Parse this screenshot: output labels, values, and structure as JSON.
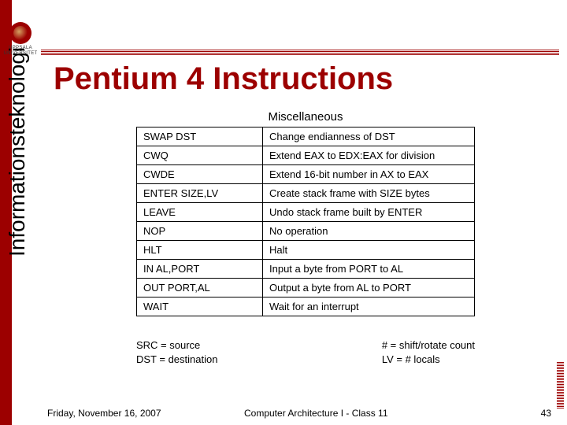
{
  "logo": {
    "line1": "UPPSALA",
    "line2": "UNIVERSITET"
  },
  "title": "Pentium 4 Instructions",
  "vertical_label": "Informationsteknologi",
  "table": {
    "heading": "Miscellaneous",
    "rows": [
      {
        "c1": "SWAP DST",
        "c2": "Change endianness of DST"
      },
      {
        "c1": "CWQ",
        "c2": "Extend EAX to EDX:EAX for division"
      },
      {
        "c1": "CWDE",
        "c2": "Extend 16-bit number in AX to EAX"
      },
      {
        "c1": "ENTER SIZE,LV",
        "c2": "Create stack frame with SIZE bytes"
      },
      {
        "c1": "LEAVE",
        "c2": "Undo stack frame built by ENTER"
      },
      {
        "c1": "NOP",
        "c2": "No operation"
      },
      {
        "c1": "HLT",
        "c2": "Halt"
      },
      {
        "c1": "IN AL,PORT",
        "c2": "Input a byte from PORT to AL"
      },
      {
        "c1": "OUT PORT,AL",
        "c2": "Output a byte from AL to PORT"
      },
      {
        "c1": "WAIT",
        "c2": "Wait for an interrupt"
      }
    ]
  },
  "legend": {
    "left1": "SRC = source",
    "left2": "DST = destination",
    "right1": "# = shift/rotate count",
    "right2": "LV = # locals"
  },
  "footer": {
    "date": "Friday, November 16, 2007",
    "center": "Computer Architecture I - Class 11",
    "page": "43"
  },
  "colors": {
    "brand_red": "#9c0000",
    "text": "#000000",
    "bg": "#ffffff"
  }
}
